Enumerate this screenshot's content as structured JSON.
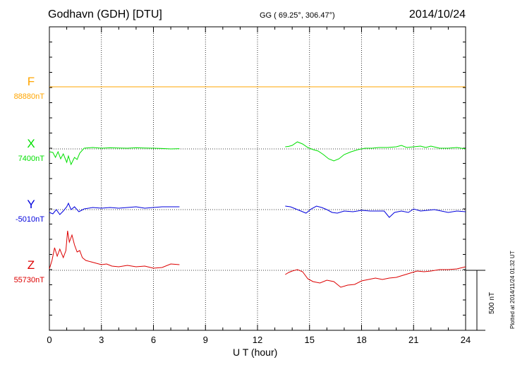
{
  "header": {
    "station": "Godhavn (GDH)  [DTU]",
    "coords": "GG ( 69.25°, 306.47°)",
    "date": "2014/10/24"
  },
  "footer": {
    "plotted": "Plotted at 2014/11/24 01:32 UT",
    "scale_label": "500 nT"
  },
  "chart_data": {
    "type": "line",
    "xlabel": "U T (hour)",
    "xlim": [
      0,
      24
    ],
    "xticks": [
      "0",
      "3",
      "6",
      "9",
      "12",
      "15",
      "18",
      "21",
      "24"
    ],
    "scale_bar_nT": 500,
    "series": [
      {
        "name": "F",
        "baseline_label": "88880nT",
        "color": "#ffa500",
        "segments": [
          [
            [
              0,
              0
            ],
            [
              24,
              0
            ]
          ]
        ]
      },
      {
        "name": "X",
        "baseline_label": "7400nT",
        "color": "#00e000",
        "segments": [
          [
            [
              0,
              -20
            ],
            [
              0.2,
              -25
            ],
            [
              0.35,
              -60
            ],
            [
              0.5,
              -20
            ],
            [
              0.65,
              -70
            ],
            [
              0.8,
              -35
            ],
            [
              1.0,
              -95
            ],
            [
              1.1,
              -50
            ],
            [
              1.25,
              -110
            ],
            [
              1.45,
              -60
            ],
            [
              1.6,
              -75
            ],
            [
              1.75,
              -30
            ],
            [
              2.0,
              5
            ],
            [
              2.5,
              10
            ],
            [
              3.0,
              5
            ],
            [
              3.5,
              8
            ],
            [
              4.0,
              6
            ],
            [
              4.5,
              5
            ],
            [
              5.0,
              8
            ],
            [
              5.5,
              6
            ],
            [
              6.0,
              5
            ],
            [
              6.5,
              3
            ],
            [
              7.0,
              0
            ],
            [
              7.5,
              2
            ]
          ],
          [
            [
              13.6,
              15
            ],
            [
              13.8,
              18
            ],
            [
              14.0,
              25
            ],
            [
              14.3,
              50
            ],
            [
              14.6,
              35
            ],
            [
              14.9,
              10
            ],
            [
              15.2,
              -5
            ],
            [
              15.5,
              -15
            ],
            [
              15.8,
              -40
            ],
            [
              16.1,
              -70
            ],
            [
              16.4,
              -85
            ],
            [
              16.7,
              -70
            ],
            [
              17.0,
              -40
            ],
            [
              17.4,
              -20
            ],
            [
              17.8,
              -5
            ],
            [
              18.2,
              5
            ],
            [
              18.6,
              5
            ],
            [
              19.0,
              10
            ],
            [
              19.5,
              10
            ],
            [
              20.0,
              15
            ],
            [
              20.3,
              25
            ],
            [
              20.6,
              10
            ],
            [
              21.0,
              15
            ],
            [
              21.4,
              20
            ],
            [
              21.7,
              10
            ],
            [
              22.0,
              20
            ],
            [
              22.5,
              5
            ],
            [
              23.0,
              5
            ],
            [
              23.5,
              10
            ],
            [
              24.0,
              0
            ]
          ]
        ]
      },
      {
        "name": "Y",
        "baseline_label": "-5010nT",
        "color": "#0000dd",
        "segments": [
          [
            [
              0,
              -20
            ],
            [
              0.2,
              -30
            ],
            [
              0.4,
              0
            ],
            [
              0.6,
              -35
            ],
            [
              0.8,
              -10
            ],
            [
              1.0,
              20
            ],
            [
              1.1,
              45
            ],
            [
              1.25,
              0
            ],
            [
              1.45,
              20
            ],
            [
              1.7,
              -15
            ],
            [
              2.0,
              5
            ],
            [
              2.5,
              15
            ],
            [
              3.0,
              10
            ],
            [
              3.5,
              15
            ],
            [
              4.0,
              10
            ],
            [
              4.5,
              15
            ],
            [
              5.0,
              20
            ],
            [
              5.5,
              10
            ],
            [
              6.0,
              15
            ],
            [
              6.5,
              20
            ],
            [
              7.0,
              20
            ],
            [
              7.5,
              20
            ]
          ],
          [
            [
              13.6,
              25
            ],
            [
              13.9,
              20
            ],
            [
              14.2,
              5
            ],
            [
              14.5,
              -10
            ],
            [
              14.8,
              -25
            ],
            [
              15.1,
              5
            ],
            [
              15.4,
              25
            ],
            [
              15.7,
              15
            ],
            [
              16.0,
              0
            ],
            [
              16.3,
              -20
            ],
            [
              16.6,
              -25
            ],
            [
              17.0,
              -10
            ],
            [
              17.5,
              -15
            ],
            [
              18.0,
              -5
            ],
            [
              18.5,
              -10
            ],
            [
              19.0,
              -10
            ],
            [
              19.3,
              -10
            ],
            [
              19.6,
              -55
            ],
            [
              19.9,
              -20
            ],
            [
              20.3,
              -10
            ],
            [
              20.7,
              -20
            ],
            [
              21.0,
              5
            ],
            [
              21.4,
              -10
            ],
            [
              21.8,
              -5
            ],
            [
              22.2,
              0
            ],
            [
              22.6,
              -10
            ],
            [
              23.0,
              -20
            ],
            [
              23.5,
              -10
            ],
            [
              24.0,
              -15
            ]
          ]
        ]
      },
      {
        "name": "Z",
        "baseline_label": "55730nT",
        "color": "#dd0000",
        "segments": [
          [
            [
              0,
              10
            ],
            [
              0.15,
              70
            ],
            [
              0.3,
              160
            ],
            [
              0.45,
              100
            ],
            [
              0.6,
              150
            ],
            [
              0.8,
              90
            ],
            [
              0.95,
              140
            ],
            [
              1.05,
              280
            ],
            [
              1.15,
              200
            ],
            [
              1.3,
              250
            ],
            [
              1.45,
              180
            ],
            [
              1.6,
              130
            ],
            [
              1.75,
              140
            ],
            [
              1.9,
              90
            ],
            [
              2.1,
              70
            ],
            [
              2.4,
              60
            ],
            [
              2.7,
              50
            ],
            [
              3.0,
              40
            ],
            [
              3.3,
              45
            ],
            [
              3.6,
              30
            ],
            [
              4.0,
              25
            ],
            [
              4.5,
              35
            ],
            [
              5.0,
              25
            ],
            [
              5.5,
              30
            ],
            [
              6.0,
              15
            ],
            [
              6.5,
              20
            ],
            [
              7.0,
              45
            ],
            [
              7.5,
              40
            ]
          ],
          [
            [
              13.6,
              -30
            ],
            [
              13.8,
              -15
            ],
            [
              14.0,
              -5
            ],
            [
              14.3,
              5
            ],
            [
              14.6,
              -10
            ],
            [
              14.9,
              -60
            ],
            [
              15.2,
              -80
            ],
            [
              15.6,
              -90
            ],
            [
              16.0,
              -70
            ],
            [
              16.4,
              -80
            ],
            [
              16.8,
              -120
            ],
            [
              17.2,
              -105
            ],
            [
              17.6,
              -100
            ],
            [
              18.0,
              -75
            ],
            [
              18.4,
              -65
            ],
            [
              18.8,
              -55
            ],
            [
              19.2,
              -65
            ],
            [
              19.6,
              -55
            ],
            [
              20.0,
              -50
            ],
            [
              20.4,
              -35
            ],
            [
              20.8,
              -20
            ],
            [
              21.2,
              -5
            ],
            [
              21.6,
              -10
            ],
            [
              22.0,
              -5
            ],
            [
              22.5,
              5
            ],
            [
              23.0,
              5
            ],
            [
              23.5,
              10
            ],
            [
              24.0,
              25
            ]
          ]
        ]
      }
    ]
  }
}
